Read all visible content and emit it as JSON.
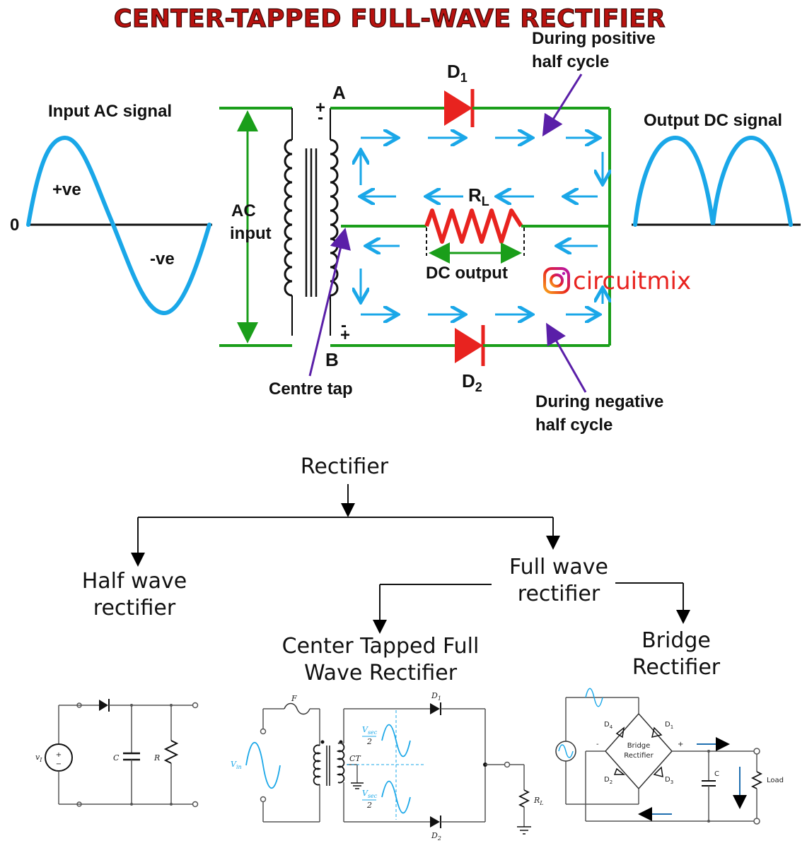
{
  "title": "CENTER-TAPPED FULL-WAVE RECTIFIER",
  "labels": {
    "input_ac_signal": "Input AC signal",
    "zero": "0",
    "pos_ve": "+ve",
    "neg_ve": "-ve",
    "ac": "AC",
    "input": "input",
    "plus_top": "+",
    "minus_top": "-",
    "minus_bottom": "-",
    "plus_bottom": "+",
    "node_a": "A",
    "node_b": "B",
    "d1_main": "D",
    "d1_sub": "1",
    "d2_main": "D",
    "d2_sub": "2",
    "rl_main": "R",
    "rl_sub": "L",
    "dc_output": "DC output",
    "during_positive_1": "During positive",
    "during_positive_2": "half cycle",
    "during_negative_1": "During negative",
    "during_negative_2": "half cycle",
    "centre_tap": "Centre tap",
    "output_dc_signal": "Output DC signal",
    "brand": "circuitmix"
  },
  "tree": {
    "root": "Rectifier",
    "half_1": "Half wave",
    "half_2": "rectifier",
    "full_1": "Full wave",
    "full_2": "rectifier",
    "ct_1": "Center Tapped Full",
    "ct_2": "Wave Rectifier",
    "bridge_1": "Bridge",
    "bridge_2": "Rectifier"
  },
  "schematics": {
    "half": {
      "vi": "v",
      "vi_sub": "I",
      "c": "C",
      "r": "R"
    },
    "ct": {
      "f": "F",
      "vin": "V",
      "vin_sub": "in",
      "ct": "CT",
      "d1": "D",
      "d1_sub": "1",
      "d2": "D",
      "d2_sub": "2",
      "rl": "R",
      "rl_sub": "L",
      "vsec": "V",
      "vsec_sub": "sec",
      "half": "2"
    },
    "bridge": {
      "d4": "D",
      "d4_sub": "4",
      "d1": "D",
      "d1_sub": "1",
      "d2": "D",
      "d2_sub": "2",
      "d3": "D",
      "d3_sub": "3",
      "bridge_1": "Bridge",
      "bridge_2": "Rectifier",
      "c": "C",
      "load": "Load",
      "plus": "+",
      "minus": "-"
    }
  },
  "colors": {
    "title": "#b8120f",
    "wire_green": "#1a9e1a",
    "signal_blue": "#1aa7e8",
    "diode_red": "#e8231f",
    "pointer_purple": "#5a1fa8"
  }
}
